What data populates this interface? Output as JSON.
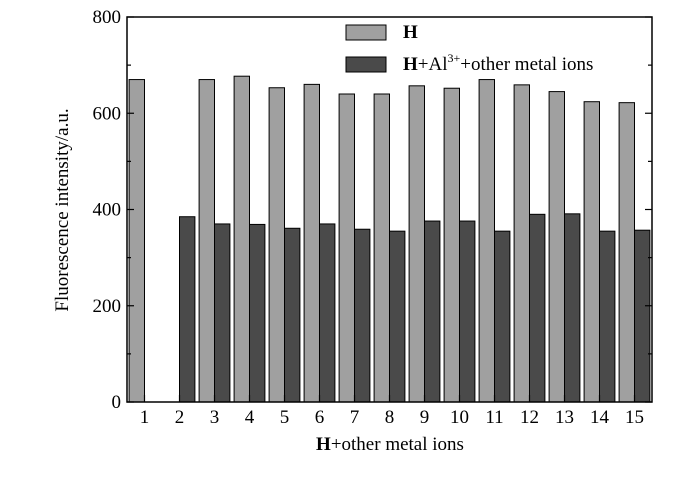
{
  "chart_data": {
    "type": "bar",
    "title": "",
    "xlabel_bold": "H",
    "xlabel_rest": "+other metal ions",
    "ylabel": "Fluorescence intensity/a.u.",
    "ylim": [
      0,
      800
    ],
    "yticks": [
      0,
      200,
      400,
      600,
      800
    ],
    "categories": [
      "1",
      "2",
      "3",
      "4",
      "5",
      "6",
      "7",
      "8",
      "9",
      "10",
      "11",
      "12",
      "13",
      "14",
      "15"
    ],
    "series": [
      {
        "name_bold": "H",
        "name_rest": "",
        "color": "#a0a0a0",
        "values": [
          670,
          0,
          670,
          677,
          653,
          660,
          640,
          640,
          657,
          652,
          670,
          659,
          645,
          624,
          622
        ]
      },
      {
        "name_bold": "H",
        "name_rest": "+Al",
        "name_sup": "3+",
        "name_tail": "+other metal ions",
        "color": "#4a4a4a",
        "values": [
          0,
          385,
          370,
          369,
          361,
          370,
          359,
          355,
          376,
          376,
          355,
          390,
          391,
          355,
          357
        ]
      }
    ],
    "legend_position": "top-right",
    "grid": false
  }
}
